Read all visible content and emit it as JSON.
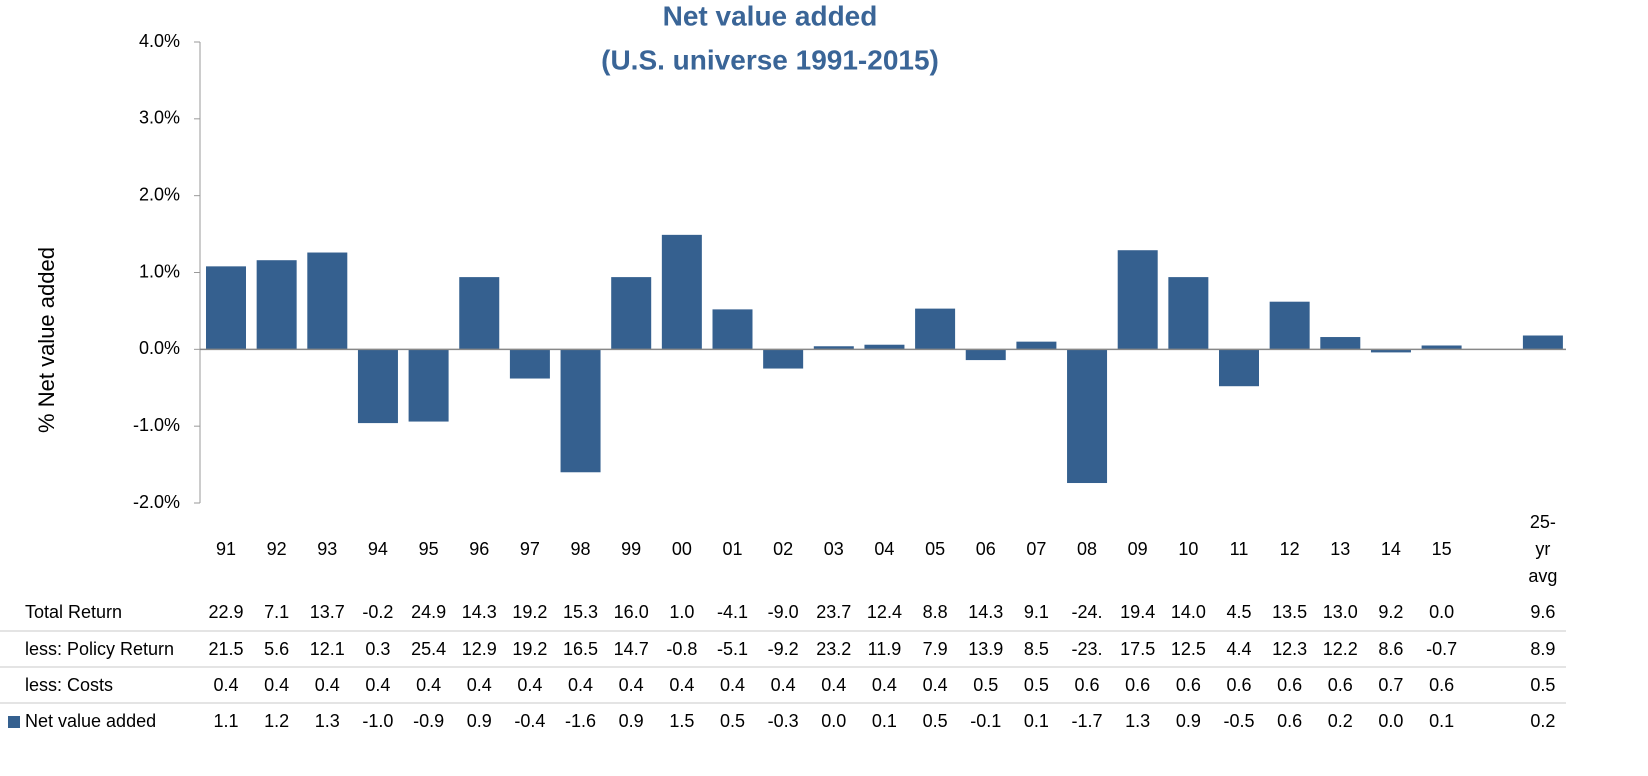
{
  "chart_data": {
    "type": "bar",
    "title": [
      "Net value added",
      "(U.S. universe 1991-2015)"
    ],
    "y_label": "% Net value added",
    "categories": [
      "91",
      "92",
      "93",
      "94",
      "95",
      "96",
      "97",
      "98",
      "99",
      "00",
      "01",
      "02",
      "03",
      "04",
      "05",
      "06",
      "07",
      "08",
      "09",
      "10",
      "11",
      "12",
      "13",
      "14",
      "15",
      null,
      "25-yr avg"
    ],
    "series": [
      {
        "name": "Net value added",
        "color": "#35608f",
        "values": [
          1.08,
          1.16,
          1.26,
          -0.96,
          -0.94,
          0.94,
          -0.38,
          -1.6,
          0.94,
          1.49,
          0.52,
          -0.25,
          0.04,
          0.06,
          0.53,
          -0.14,
          0.1,
          -1.74,
          1.29,
          0.94,
          -0.48,
          0.62,
          0.16,
          -0.04,
          0.05,
          null,
          0.18
        ]
      }
    ],
    "ylim": [
      -2,
      4
    ],
    "yticks": [
      {
        "value": -2,
        "label": "-2.0%"
      },
      {
        "value": -1,
        "label": "-1.0%"
      },
      {
        "value": 0,
        "label": "0.0%"
      },
      {
        "value": 1,
        "label": "1.0%"
      },
      {
        "value": 2,
        "label": "2.0%"
      },
      {
        "value": 3,
        "label": "3.0%"
      },
      {
        "value": 4,
        "label": "4.0%"
      }
    ],
    "table": {
      "rows": [
        {
          "label": "Total Return",
          "cells": [
            "22.9",
            "7.1",
            "13.7",
            "-0.2",
            "24.9",
            "14.3",
            "19.2",
            "15.3",
            "16.0",
            "1.0",
            "-4.1",
            "-9.0",
            "23.7",
            "12.4",
            "8.8",
            "14.3",
            "9.1",
            "-24.",
            "19.4",
            "14.0",
            "4.5",
            "13.5",
            "13.0",
            "9.2",
            "0.0",
            "9.6"
          ]
        },
        {
          "label": "less: Policy Return",
          "cells": [
            "21.5",
            "5.6",
            "12.1",
            "0.3",
            "25.4",
            "12.9",
            "19.2",
            "16.5",
            "14.7",
            "-0.8",
            "-5.1",
            "-9.2",
            "23.2",
            "11.9",
            "7.9",
            "13.9",
            "8.5",
            "-23.",
            "17.5",
            "12.5",
            "4.4",
            "12.3",
            "12.2",
            "8.6",
            "-0.7",
            "8.9"
          ]
        },
        {
          "label": "less: Costs",
          "cells": [
            "0.4",
            "0.4",
            "0.4",
            "0.4",
            "0.4",
            "0.4",
            "0.4",
            "0.4",
            "0.4",
            "0.4",
            "0.4",
            "0.4",
            "0.4",
            "0.4",
            "0.4",
            "0.5",
            "0.5",
            "0.6",
            "0.6",
            "0.6",
            "0.6",
            "0.6",
            "0.6",
            "0.7",
            "0.6",
            "0.5"
          ]
        },
        {
          "cells": [
            "1.1",
            "1.2",
            "1.3",
            "-1.0",
            "-0.9",
            "0.9",
            "-0.4",
            "-1.6",
            "0.9",
            "1.5",
            "0.5",
            "-0.3",
            "0.0",
            "0.1",
            "0.5",
            "-0.1",
            "0.1",
            "-1.7",
            "1.3",
            "0.9",
            "-0.5",
            "0.6",
            "0.2",
            "0.0",
            "0.1",
            "0.2"
          ]
        }
      ]
    }
  }
}
